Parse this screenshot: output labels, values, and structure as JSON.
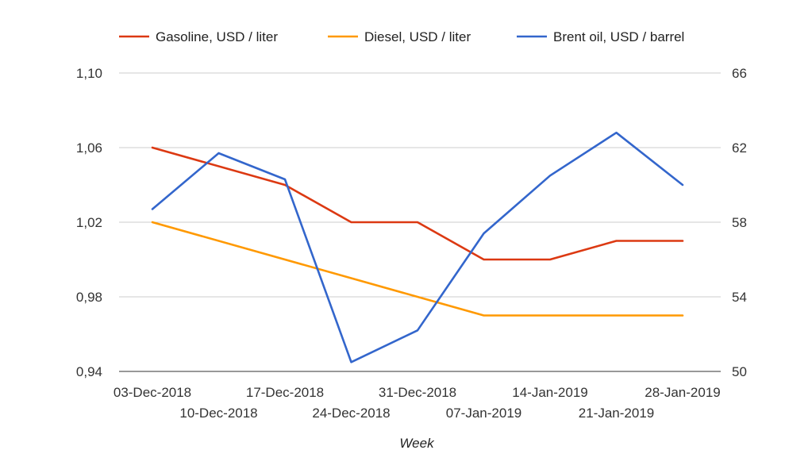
{
  "chart_data": {
    "type": "line",
    "title": "",
    "xlabel": "Week",
    "ylabel": "",
    "categories": [
      "03-Dec-2018",
      "10-Dec-2018",
      "17-Dec-2018",
      "24-Dec-2018",
      "31-Dec-2018",
      "07-Jan-2019",
      "14-Jan-2019",
      "21-Jan-2019",
      "28-Jan-2019"
    ],
    "ylim": [
      0.94,
      1.1
    ],
    "yticks": [
      "0,94",
      "0,98",
      "1,02",
      "1,06",
      "1,10"
    ],
    "ytick_values": [
      0.94,
      0.98,
      1.02,
      1.06,
      1.1
    ],
    "y2lim": [
      50,
      66
    ],
    "y2ticks": [
      "50",
      "54",
      "58",
      "62",
      "66"
    ],
    "y2tick_values": [
      50,
      54,
      58,
      62,
      66
    ],
    "grid": true,
    "legend_position": "top",
    "series": [
      {
        "name": "Gasoline, USD / liter",
        "axis": "left",
        "color": "#dc3912",
        "x": [
          "03-Dec-2018",
          "17-Dec-2018",
          "24-Dec-2018",
          "31-Dec-2018",
          "07-Jan-2019",
          "14-Jan-2019",
          "21-Jan-2019",
          "28-Jan-2019"
        ],
        "values": [
          1.06,
          1.04,
          1.02,
          1.02,
          1.0,
          1.0,
          1.01,
          1.01
        ]
      },
      {
        "name": "Diesel, USD / liter",
        "axis": "left",
        "color": "#ff9900",
        "x": [
          "03-Dec-2018",
          "07-Jan-2019",
          "14-Jan-2019",
          "21-Jan-2019",
          "28-Jan-2019"
        ],
        "values": [
          1.02,
          0.97,
          0.97,
          0.97,
          0.97
        ]
      },
      {
        "name": "Brent oil, USD / barrel",
        "axis": "right",
        "color": "#3366cc",
        "x": [
          "03-Dec-2018",
          "10-Dec-2018",
          "17-Dec-2018",
          "24-Dec-2018",
          "31-Dec-2018",
          "07-Jan-2019",
          "14-Jan-2019",
          "21-Jan-2019",
          "28-Jan-2019"
        ],
        "values": [
          58.7,
          61.7,
          60.3,
          50.5,
          52.2,
          57.4,
          60.5,
          62.8,
          60.0
        ]
      }
    ]
  }
}
